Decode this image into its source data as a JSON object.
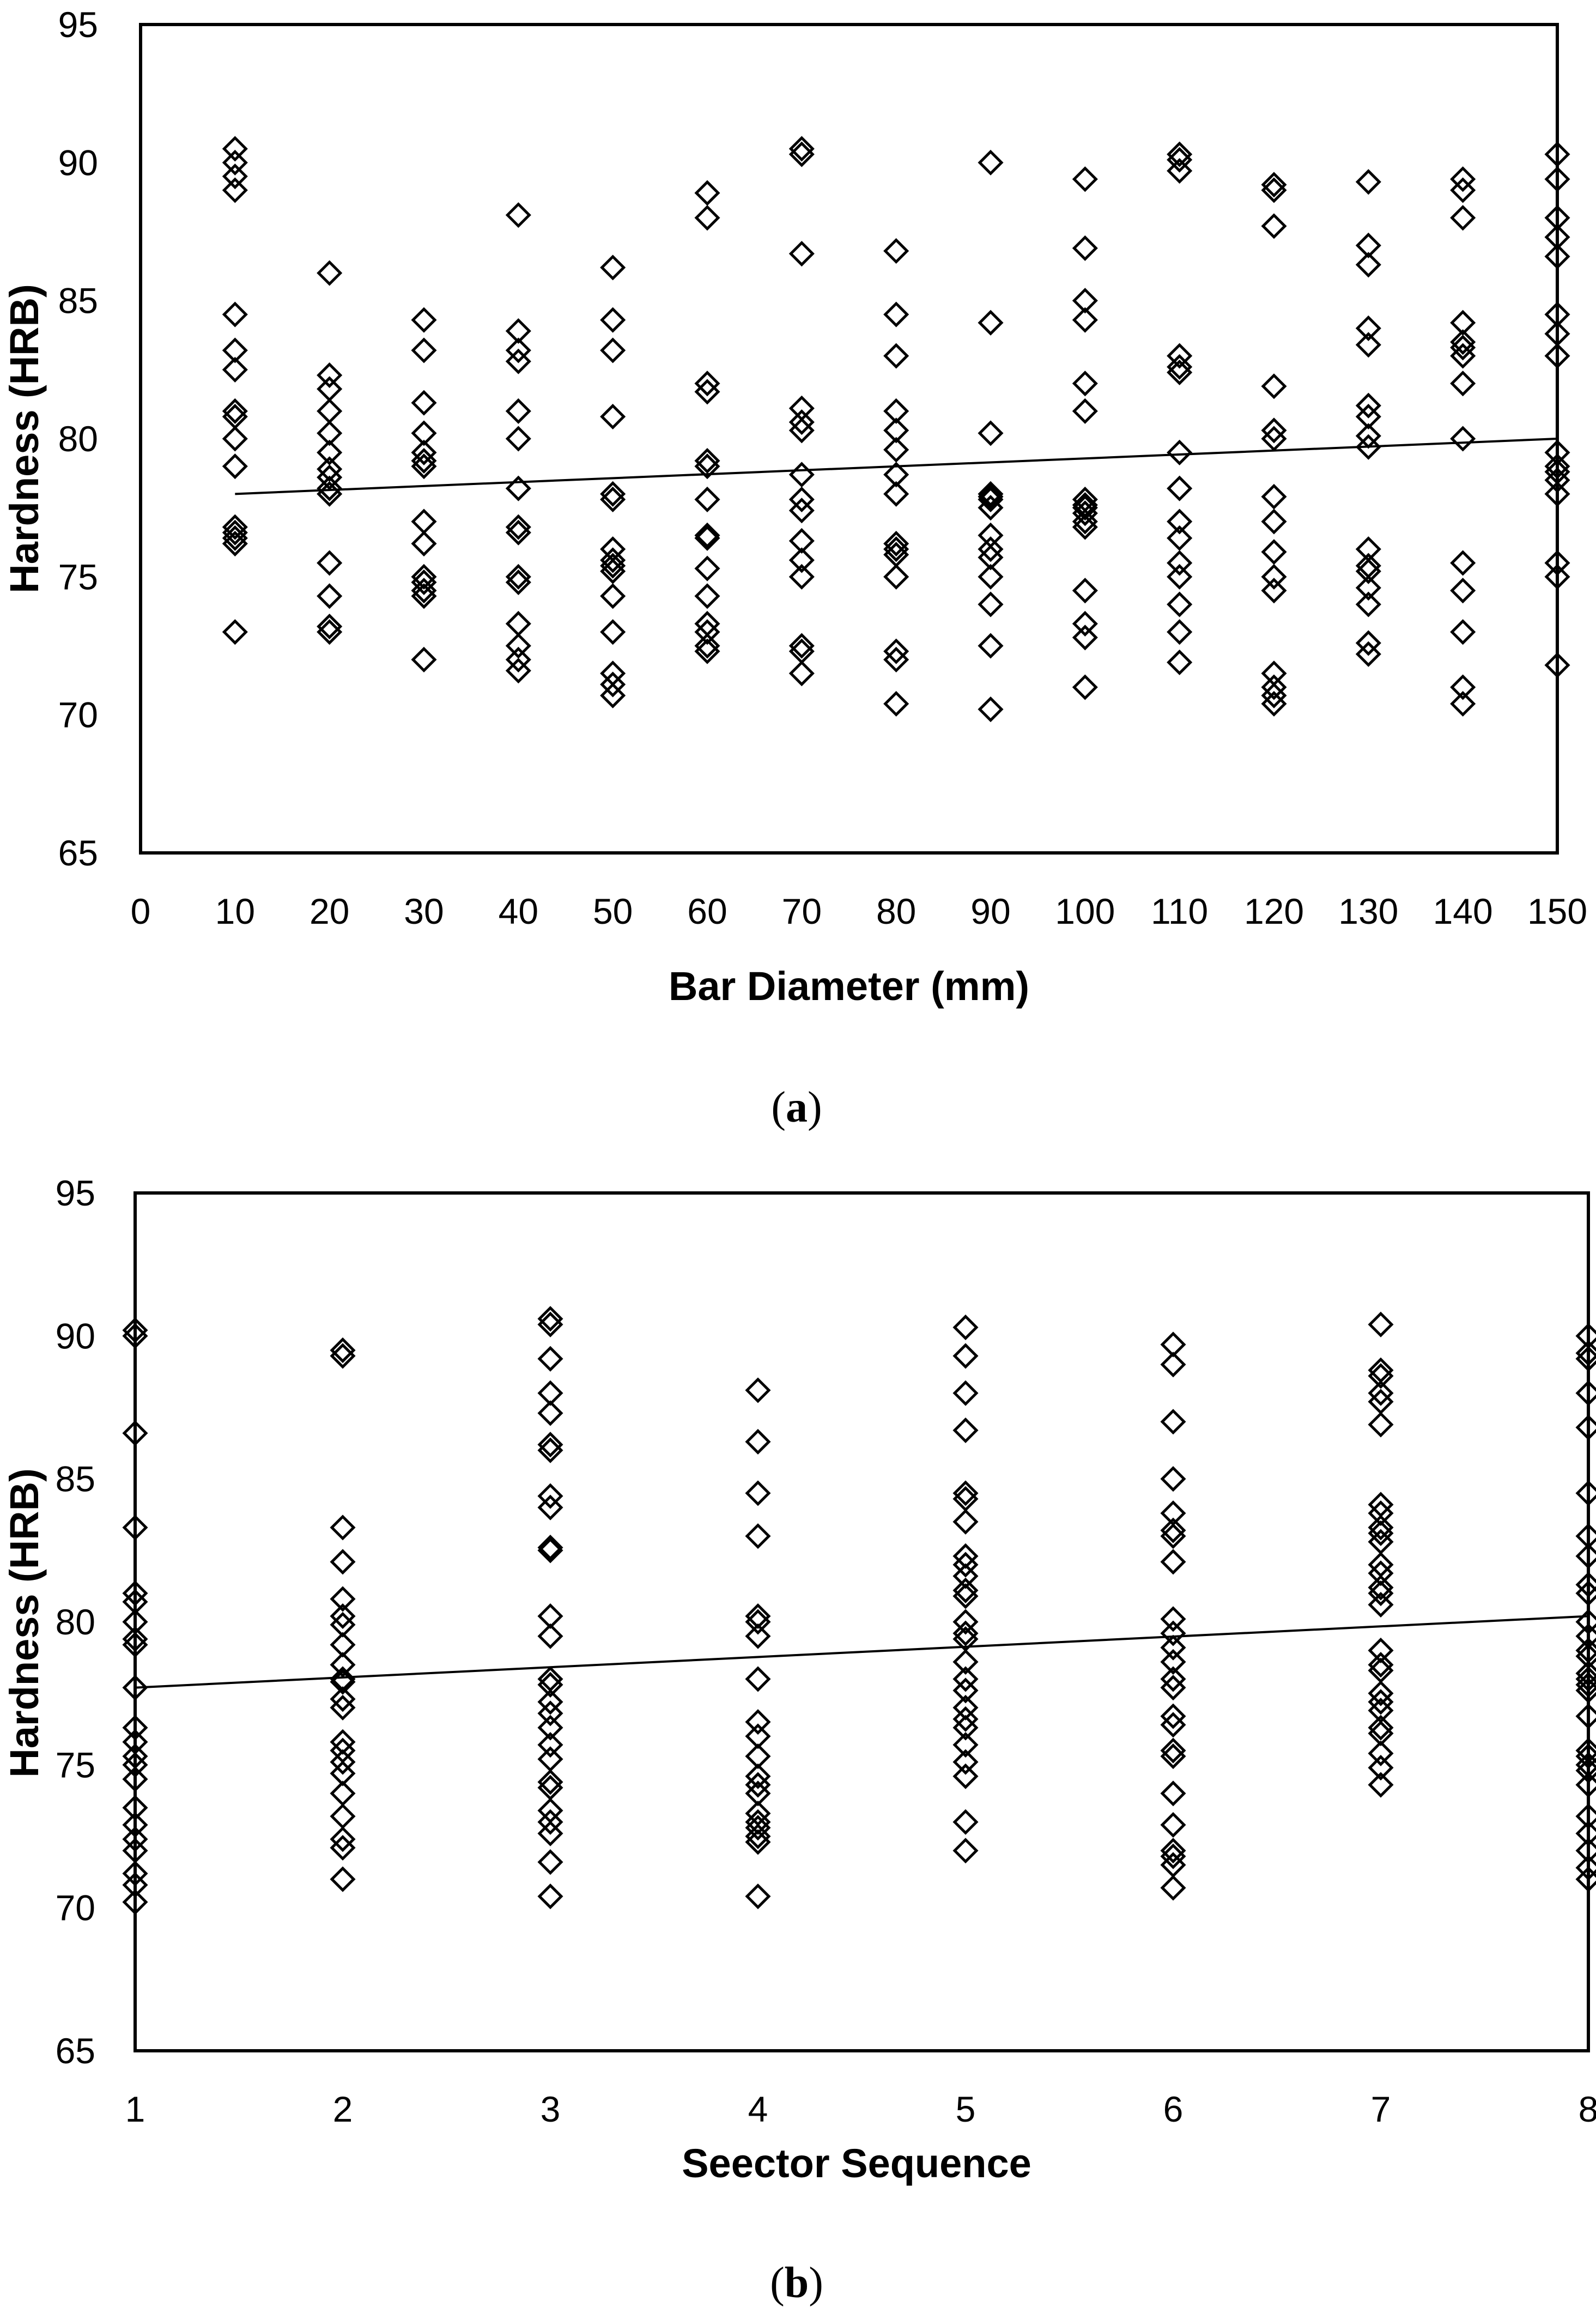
{
  "chart_data": [
    {
      "type": "scatter",
      "panel_label": "(a)",
      "panel_letter": "a",
      "xlabel": "Bar Diameter (mm)",
      "ylabel": "Hardness (HRB)",
      "xlim": [
        0,
        150
      ],
      "ylim": [
        65,
        95
      ],
      "xticks": [
        0,
        10,
        20,
        30,
        40,
        50,
        60,
        70,
        80,
        90,
        100,
        110,
        120,
        130,
        140,
        150
      ],
      "xtick_labels": [
        "0",
        "10",
        "20",
        "30",
        "40",
        "50",
        "60",
        "70",
        "80",
        "90",
        "100",
        "110",
        "120",
        "130",
        "140",
        "150"
      ],
      "yticks": [
        65,
        70,
        75,
        80,
        85,
        90,
        95
      ],
      "ytick_labels": [
        "65",
        "70",
        "75",
        "80",
        "85",
        "90",
        "95"
      ],
      "grid": false,
      "marker": "open-diamond",
      "trendline": {
        "x": [
          10,
          150
        ],
        "y": [
          78.0,
          80.0
        ]
      },
      "series": [
        {
          "x": 10,
          "y": [
            90.5,
            90,
            89.5,
            89,
            84.5,
            83.2,
            82.5,
            81,
            80.8,
            80,
            79,
            76.8,
            76.6,
            76.4,
            76.2,
            73
          ]
        },
        {
          "x": 20,
          "y": [
            86,
            82.3,
            81.8,
            81,
            80.2,
            79.5,
            78.9,
            78.6,
            78.2,
            78,
            75.5,
            74.3,
            73.2,
            73
          ]
        },
        {
          "x": 30,
          "y": [
            84.3,
            83.2,
            81.3,
            80.2,
            79.5,
            79.2,
            79,
            77,
            76.2,
            75,
            74.8,
            74.5,
            74.3,
            72
          ]
        },
        {
          "x": 40,
          "y": [
            88.1,
            83.9,
            83.2,
            82.8,
            81,
            80,
            78.2,
            76.8,
            76.6,
            75,
            74.8,
            73.3,
            72.5,
            72,
            71.6
          ]
        },
        {
          "x": 50,
          "y": [
            86.2,
            84.3,
            83.2,
            80.8,
            78,
            77.8,
            76,
            75.6,
            75.4,
            75.2,
            74.3,
            73,
            71.5,
            71.1,
            70.7
          ]
        },
        {
          "x": 60,
          "y": [
            88.9,
            88,
            82,
            81.7,
            79.2,
            79,
            77.8,
            76.5,
            76.4,
            75.3,
            74.3,
            73.3,
            73,
            72.5,
            72.3
          ]
        },
        {
          "x": 70,
          "y": [
            90.5,
            90.3,
            86.7,
            81.1,
            80.6,
            80.3,
            78.7,
            77.8,
            77.4,
            76.3,
            75.6,
            75,
            72.5,
            72.3,
            71.5
          ]
        },
        {
          "x": 80,
          "y": [
            86.8,
            84.5,
            83,
            81,
            80.3,
            79.6,
            78.7,
            78,
            76.2,
            76,
            75.8,
            75,
            72.3,
            72,
            70.4
          ]
        },
        {
          "x": 90,
          "y": [
            90,
            84.2,
            80.2,
            78,
            77.9,
            77.8,
            77.5,
            76.5,
            76,
            75.7,
            75,
            74,
            72.5,
            70.2
          ]
        },
        {
          "x": 100,
          "y": [
            89.4,
            86.9,
            85,
            84.3,
            82,
            81,
            77.8,
            77.6,
            77.5,
            77.3,
            77,
            76.8,
            74.5,
            73.3,
            72.8,
            71
          ]
        },
        {
          "x": 110,
          "y": [
            90.3,
            90.1,
            89.7,
            83,
            82.6,
            82.4,
            79.5,
            78.2,
            77,
            76.4,
            75.5,
            75,
            74,
            73,
            71.9
          ]
        },
        {
          "x": 120,
          "y": [
            89.2,
            89,
            87.7,
            81.9,
            80.3,
            80,
            77.9,
            77,
            75.9,
            75,
            74.5,
            71.5,
            71,
            70.7,
            70.4
          ]
        },
        {
          "x": 130,
          "y": [
            89.3,
            87,
            86.3,
            84,
            83.4,
            81.2,
            80.8,
            80.1,
            79.7,
            76,
            75.4,
            75.2,
            74.6,
            74,
            72.6,
            72.2
          ]
        },
        {
          "x": 140,
          "y": [
            89.4,
            89,
            88,
            84.2,
            83.5,
            83.3,
            83,
            82,
            80,
            75.5,
            74.5,
            73,
            71,
            70.4
          ]
        },
        {
          "x": 150,
          "y": [
            90.3,
            89.4,
            88,
            87.3,
            86.6,
            84.5,
            83.8,
            83,
            79.5,
            79,
            78.8,
            78.5,
            78,
            75.5,
            75,
            71.8
          ]
        }
      ]
    },
    {
      "type": "scatter",
      "panel_label": "(b)",
      "panel_letter": "b",
      "xlabel": "Seector Sequence",
      "ylabel": "Hardness (HRB)",
      "xlim": [
        1,
        8
      ],
      "ylim": [
        65,
        95
      ],
      "xticks": [
        1,
        2,
        3,
        4,
        5,
        6,
        7,
        8
      ],
      "xtick_labels": [
        "1",
        "2",
        "3",
        "4",
        "5",
        "6",
        "7",
        "8"
      ],
      "yticks": [
        65,
        70,
        75,
        80,
        85,
        90,
        95
      ],
      "ytick_labels": [
        "65",
        "70",
        "75",
        "80",
        "85",
        "90",
        "95"
      ],
      "grid": false,
      "marker": "open-diamond",
      "trendline": {
        "x": [
          1,
          8
        ],
        "y": [
          77.7,
          80.2
        ]
      },
      "series": [
        {
          "x": 1,
          "y": [
            90.2,
            90,
            86.6,
            83.3,
            81,
            80.7,
            80,
            79.4,
            79.2,
            77.7,
            76.3,
            75.8,
            75.3,
            75,
            74.5,
            73.5,
            72.9,
            72.4,
            72,
            71.2,
            70.8,
            70.2
          ]
        },
        {
          "x": 2,
          "y": [
            89.5,
            89.3,
            83.3,
            82.1,
            80.8,
            80.2,
            79.9,
            79.2,
            78.5,
            78,
            77.9,
            77.3,
            77,
            75.8,
            75.5,
            75.1,
            74.7,
            74,
            73.2,
            72.4,
            72.1,
            71
          ]
        },
        {
          "x": 3,
          "y": [
            90.6,
            90.4,
            89.2,
            88,
            87.3,
            86.2,
            86,
            84.4,
            84,
            82.6,
            82.5,
            80.2,
            79.5,
            78,
            77.8,
            77.2,
            76.8,
            76.3,
            75.7,
            75.2,
            74.4,
            74.2,
            73.4,
            73,
            72.6,
            71.6,
            70.4
          ]
        },
        {
          "x": 4,
          "y": [
            88.1,
            86.3,
            84.5,
            83,
            80.2,
            80,
            79.5,
            78,
            76.5,
            76,
            75.3,
            74.6,
            74.3,
            74,
            73.3,
            73,
            72.8,
            72.5,
            72.3,
            70.4
          ]
        },
        {
          "x": 5,
          "y": [
            90.3,
            89.3,
            88,
            86.7,
            84.5,
            84.3,
            83.5,
            82.3,
            82,
            81.6,
            81.1,
            80.9,
            80,
            79.6,
            79.4,
            78.6,
            78,
            77.6,
            77,
            76.6,
            76.3,
            75.7,
            75.1,
            74.6,
            73,
            72
          ]
        },
        {
          "x": 6,
          "y": [
            89.7,
            89,
            87,
            85,
            83.8,
            83.2,
            83,
            82.1,
            80.1,
            79.6,
            79.1,
            78.6,
            78,
            77.7,
            76.7,
            76.4,
            75.5,
            75.3,
            74,
            72.9,
            72,
            71.8,
            71.5,
            70.7
          ]
        },
        {
          "x": 7,
          "y": [
            90.4,
            88.8,
            88.6,
            88,
            87.7,
            86.9,
            84.1,
            83.8,
            83.3,
            83.1,
            82.8,
            82,
            81.7,
            81.2,
            81,
            80.6,
            79,
            78.5,
            78.3,
            77.5,
            77.2,
            76.9,
            76.3,
            76.1,
            75.4,
            74.9,
            74.3
          ]
        },
        {
          "x": 8,
          "y": [
            90,
            89.4,
            89.2,
            88,
            86.8,
            84.5,
            83,
            82.3,
            81.3,
            81,
            80,
            79.5,
            79,
            78.8,
            78.2,
            78,
            77.8,
            77.6,
            76.7,
            75.5,
            75.3,
            75,
            74.8,
            74.3,
            73.2,
            72.6,
            72,
            71.4,
            71
          ]
        }
      ]
    }
  ]
}
